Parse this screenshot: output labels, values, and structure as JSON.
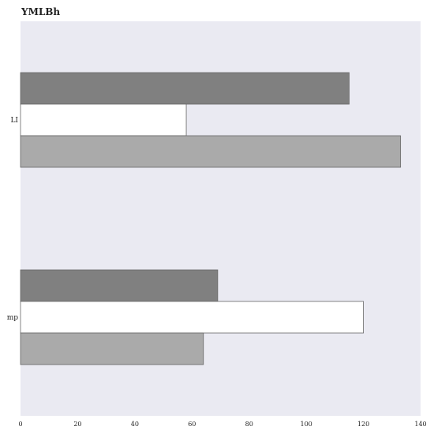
{
  "chart_data": {
    "type": "bar",
    "orientation": "horizontal",
    "title": "YMLBh",
    "xlabel": "",
    "ylabel": "",
    "categories": [
      "LI",
      "mp"
    ],
    "series": [
      {
        "values": [
          115,
          69
        ],
        "color": "#808080"
      },
      {
        "values": [
          58,
          120
        ],
        "color": "#ffffff"
      },
      {
        "values": [
          133,
          64
        ],
        "color": "#aaaaaa"
      }
    ],
    "xlim": [
      0,
      140
    ],
    "xticks": [
      0,
      20,
      40,
      60,
      80,
      100,
      120,
      140
    ],
    "grid": false,
    "background": "#eaeaf2"
  }
}
